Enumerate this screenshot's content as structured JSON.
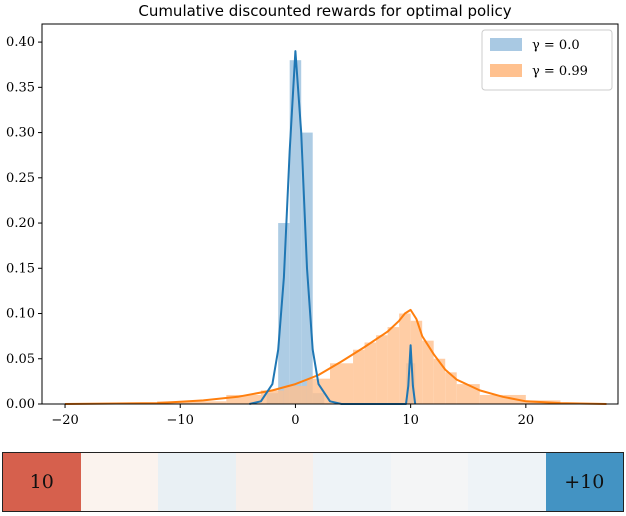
{
  "chart_data": {
    "type": "area",
    "title": "Cumulative discounted rewards for optimal policy",
    "xlabel": "",
    "ylabel": "",
    "xlim": [
      -22,
      28
    ],
    "ylim": [
      0,
      0.42
    ],
    "x_ticks": [
      -20,
      -10,
      0,
      10,
      20
    ],
    "x_tick_labels": [
      "−20",
      "−10",
      "0",
      "10",
      "20"
    ],
    "y_ticks": [
      0.0,
      0.05,
      0.1,
      0.15,
      0.2,
      0.25,
      0.3,
      0.35,
      0.4
    ],
    "y_tick_labels": [
      "0.00",
      "0.05",
      "0.10",
      "0.15",
      "0.20",
      "0.25",
      "0.30",
      "0.35",
      "0.40"
    ],
    "legend_position": "top-right",
    "grid": false,
    "series": [
      {
        "name": "γ = 0.0",
        "color": "#1f77b4",
        "fill_color": "#a9c9e3",
        "kde": [
          [
            -4,
            0
          ],
          [
            -3,
            0.003
          ],
          [
            -2,
            0.022
          ],
          [
            -1.5,
            0.06
          ],
          [
            -1,
            0.14
          ],
          [
            -0.5,
            0.28
          ],
          [
            0,
            0.39
          ],
          [
            0.5,
            0.3
          ],
          [
            1,
            0.15
          ],
          [
            1.5,
            0.06
          ],
          [
            2,
            0.022
          ],
          [
            3,
            0.003
          ],
          [
            4,
            0
          ],
          [
            9.6,
            0
          ],
          [
            9.8,
            0.02
          ],
          [
            10,
            0.065
          ],
          [
            10.2,
            0.02
          ],
          [
            10.4,
            0
          ]
        ],
        "histogram": [
          {
            "x0": -2.5,
            "x1": -1.5,
            "h": 0.012
          },
          {
            "x0": -1.5,
            "x1": -0.5,
            "h": 0.2
          },
          {
            "x0": -0.5,
            "x1": 0.5,
            "h": 0.38
          },
          {
            "x0": 0.5,
            "x1": 1.5,
            "h": 0.3
          },
          {
            "x0": 1.5,
            "x1": 2.5,
            "h": 0.012
          },
          {
            "x0": 9.6,
            "x1": 10.4,
            "h": 0.045
          }
        ]
      },
      {
        "name": "γ = 0.99",
        "color": "#ff7f0e",
        "fill_color": "#ffc18f",
        "kde": [
          [
            -20,
            0
          ],
          [
            -12,
            0.001
          ],
          [
            -8,
            0.004
          ],
          [
            -5,
            0.008
          ],
          [
            -2,
            0.015
          ],
          [
            0,
            0.022
          ],
          [
            2,
            0.032
          ],
          [
            4,
            0.047
          ],
          [
            6,
            0.063
          ],
          [
            8,
            0.08
          ],
          [
            9,
            0.092
          ],
          [
            9.5,
            0.1
          ],
          [
            10,
            0.104
          ],
          [
            10.5,
            0.094
          ],
          [
            11,
            0.075
          ],
          [
            12,
            0.055
          ],
          [
            13,
            0.038
          ],
          [
            14,
            0.027
          ],
          [
            16,
            0.015
          ],
          [
            18,
            0.008
          ],
          [
            20,
            0.003
          ],
          [
            23,
            0.001
          ],
          [
            27,
            0
          ]
        ],
        "histogram": [
          {
            "x0": -12,
            "x1": -6,
            "h": 0.003
          },
          {
            "x0": -6,
            "x1": -3,
            "h": 0.01
          },
          {
            "x0": -3,
            "x1": -1,
            "h": 0.015
          },
          {
            "x0": -1,
            "x1": 1,
            "h": 0.02
          },
          {
            "x0": 1,
            "x1": 3,
            "h": 0.028
          },
          {
            "x0": 3,
            "x1": 5,
            "h": 0.045
          },
          {
            "x0": 5,
            "x1": 6,
            "h": 0.06
          },
          {
            "x0": 6,
            "x1": 7,
            "h": 0.068
          },
          {
            "x0": 7,
            "x1": 8,
            "h": 0.076
          },
          {
            "x0": 8,
            "x1": 9,
            "h": 0.085
          },
          {
            "x0": 9,
            "x1": 10,
            "h": 0.1
          },
          {
            "x0": 10,
            "x1": 11,
            "h": 0.092
          },
          {
            "x0": 11,
            "x1": 12,
            "h": 0.07
          },
          {
            "x0": 12,
            "x1": 13,
            "h": 0.05
          },
          {
            "x0": 13,
            "x1": 14,
            "h": 0.035
          },
          {
            "x0": 14,
            "x1": 16,
            "h": 0.022
          },
          {
            "x0": 16,
            "x1": 20,
            "h": 0.01
          },
          {
            "x0": 20,
            "x1": 23,
            "h": 0.004
          }
        ]
      }
    ]
  },
  "color_strip": {
    "cells": [
      {
        "label": "10",
        "color": "#d6604d"
      },
      {
        "label": "",
        "color": "#fbf3ee"
      },
      {
        "label": "",
        "color": "#e9f0f4"
      },
      {
        "label": "",
        "color": "#f8efea"
      },
      {
        "label": "",
        "color": "#eef3f7"
      },
      {
        "label": "",
        "color": "#f4f5f6"
      },
      {
        "label": "",
        "color": "#eef3f7"
      },
      {
        "label": "+10",
        "color": "#4393c3"
      }
    ]
  }
}
